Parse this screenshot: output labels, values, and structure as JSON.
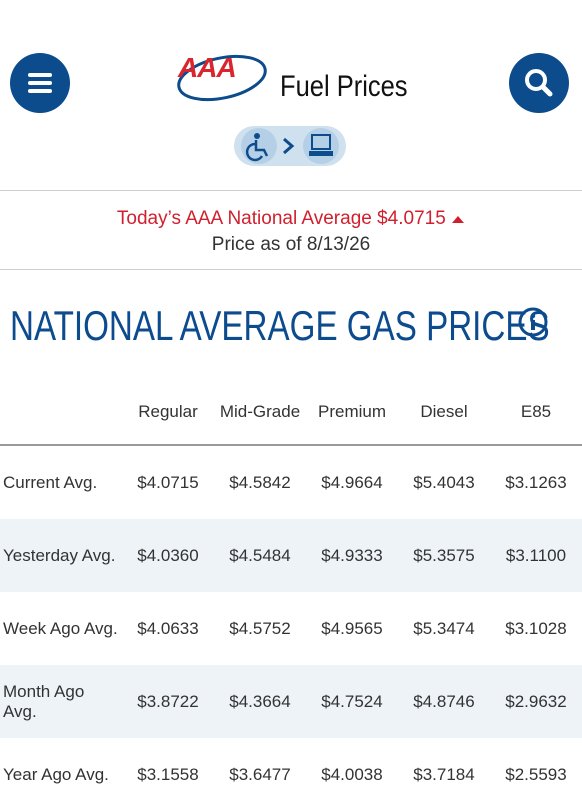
{
  "header": {
    "logo": "AAA",
    "title": "Fuel Prices"
  },
  "banner": {
    "average": "Today’s AAA National Average $4.0715",
    "date": "Price as of 8/13/26"
  },
  "heading": "NATIONAL AVERAGE GAS PRICES",
  "table": {
    "columns": [
      "Regular",
      "Mid-Grade",
      "Premium",
      "Diesel",
      "E85"
    ],
    "rows": [
      [
        "Current Avg.",
        "$4.0715",
        "$4.5842",
        "$4.9664",
        "$5.4043",
        "$3.1263"
      ],
      [
        "Yesterday Avg.",
        "$4.0360",
        "$4.5484",
        "$4.9333",
        "$5.3575",
        "$3.1100"
      ],
      [
        "Week Ago Avg.",
        "$4.0633",
        "$4.5752",
        "$4.9565",
        "$5.3474",
        "$3.1028"
      ],
      [
        "Month Ago Avg.",
        "$3.8722",
        "$4.3664",
        "$4.7524",
        "$4.8746",
        "$2.9632"
      ],
      [
        "Year Ago Avg.",
        "$3.1558",
        "$3.6477",
        "$4.0038",
        "$3.7184",
        "$2.5593"
      ]
    ]
  }
}
